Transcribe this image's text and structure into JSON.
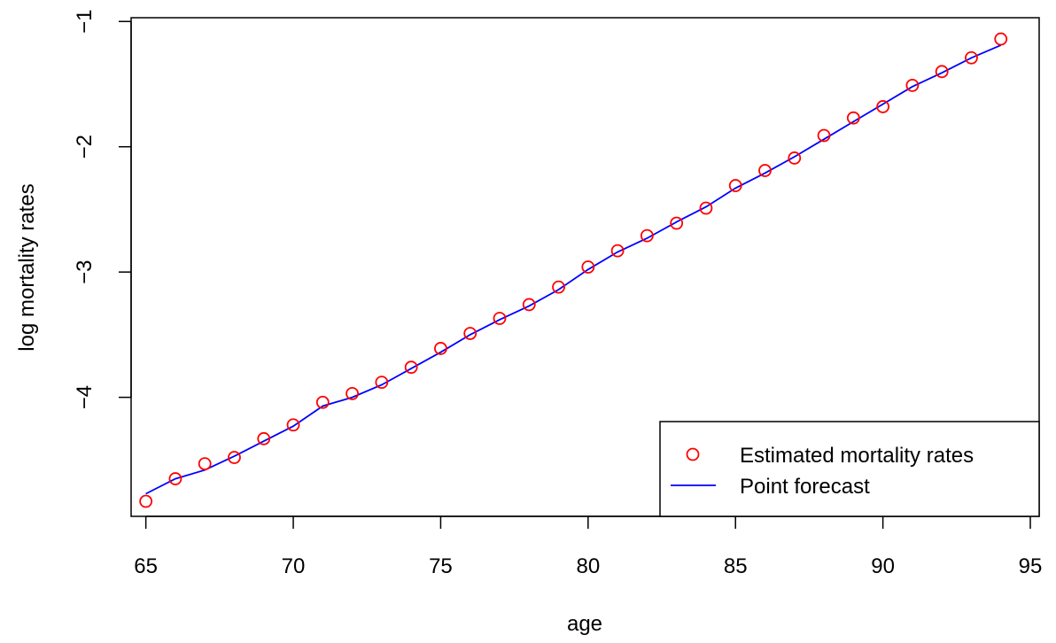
{
  "chart_data": {
    "type": "scatter",
    "title": "",
    "xlabel": "age",
    "ylabel": "log mortality rates",
    "xlim": [
      64.5,
      95.3
    ],
    "ylim": [
      -4.95,
      -0.97
    ],
    "x_ticks": [
      65,
      70,
      75,
      80,
      85,
      90,
      95
    ],
    "x_tick_labels": [
      "65",
      "70",
      "75",
      "80",
      "85",
      "90",
      "95"
    ],
    "y_ticks": [
      -4,
      -3,
      -2,
      -1
    ],
    "y_tick_labels": [
      "−4",
      "−3",
      "−2",
      "−1"
    ],
    "grid": false,
    "legend_position": "bottom-right",
    "series": [
      {
        "name": "Estimated mortality rates",
        "kind": "points",
        "color": "#ff0000",
        "x": [
          65,
          66,
          67,
          68,
          69,
          70,
          71,
          72,
          73,
          74,
          75,
          76,
          77,
          78,
          79,
          80,
          81,
          82,
          83,
          84,
          85,
          86,
          87,
          88,
          89,
          90,
          91,
          92,
          93,
          94
        ],
        "y": [
          -4.83,
          -4.65,
          -4.53,
          -4.48,
          -4.33,
          -4.22,
          -4.04,
          -3.97,
          -3.88,
          -3.76,
          -3.61,
          -3.49,
          -3.37,
          -3.26,
          -3.12,
          -2.96,
          -2.83,
          -2.71,
          -2.61,
          -2.49,
          -2.31,
          -2.19,
          -2.09,
          -1.91,
          -1.77,
          -1.68,
          -1.51,
          -1.4,
          -1.29,
          -1.14
        ]
      },
      {
        "name": "Point forecast",
        "kind": "line",
        "color": "#0000ff",
        "x": [
          65,
          66,
          67,
          68,
          69,
          70,
          71,
          72,
          73,
          74,
          75,
          76,
          77,
          78,
          79,
          80,
          81,
          82,
          83,
          84,
          85,
          86,
          87,
          88,
          89,
          90,
          91,
          92,
          93,
          94
        ],
        "y": [
          -4.77,
          -4.65,
          -4.58,
          -4.47,
          -4.35,
          -4.23,
          -4.07,
          -4.0,
          -3.9,
          -3.77,
          -3.64,
          -3.5,
          -3.38,
          -3.27,
          -3.14,
          -2.98,
          -2.84,
          -2.73,
          -2.6,
          -2.48,
          -2.33,
          -2.21,
          -2.08,
          -1.94,
          -1.8,
          -1.66,
          -1.52,
          -1.41,
          -1.29,
          -1.19
        ]
      }
    ]
  }
}
